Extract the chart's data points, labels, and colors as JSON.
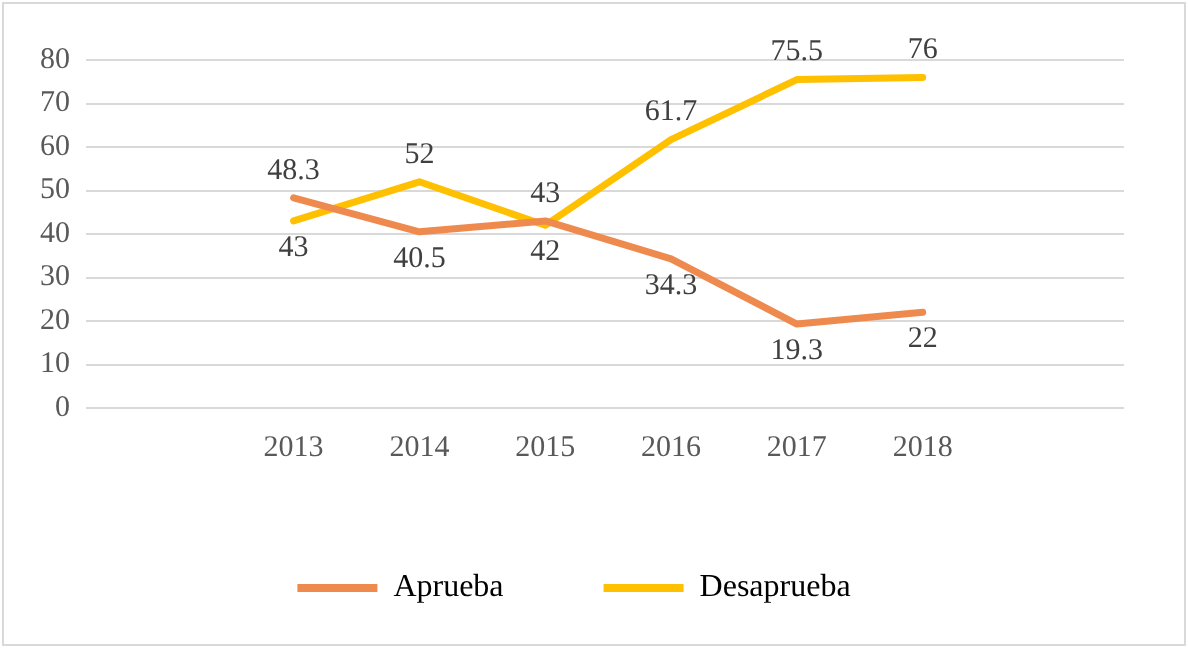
{
  "chart_data": {
    "type": "line",
    "categories": [
      "2013",
      "2014",
      "2015",
      "2016",
      "2017",
      "2018"
    ],
    "series": [
      {
        "name": "Aprueba",
        "color": "#ef8a4f",
        "values": [
          48.3,
          40.5,
          43,
          34.3,
          19.3,
          22
        ]
      },
      {
        "name": "Desaprueba",
        "color": "#ffc000",
        "values": [
          43,
          52,
          42,
          61.7,
          75.5,
          76
        ]
      }
    ],
    "ylim": [
      0,
      80
    ],
    "yticks": [
      0,
      10,
      20,
      30,
      40,
      50,
      60,
      70,
      80
    ],
    "grid": "y",
    "legend": "bottom",
    "data_labels": true,
    "marker": "none",
    "line_style": "solid"
  }
}
